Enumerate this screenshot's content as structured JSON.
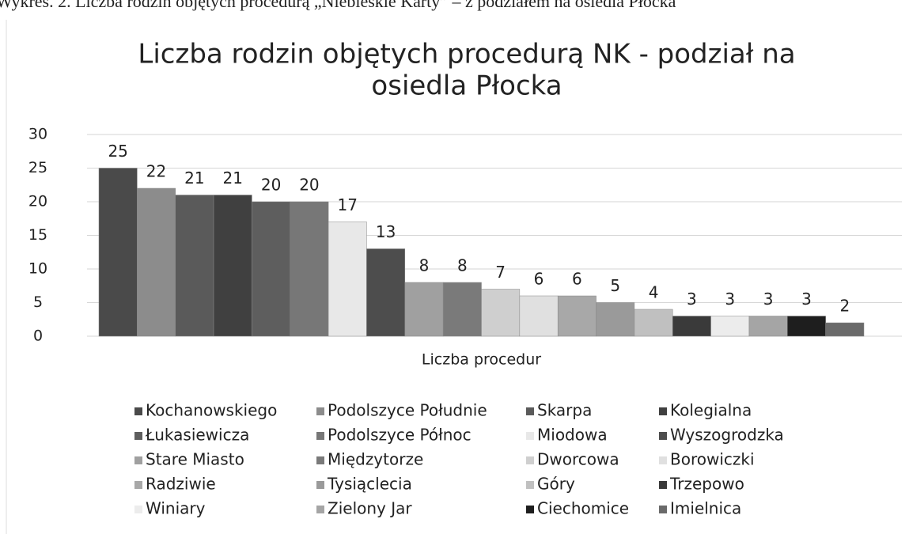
{
  "caption": "Wykres. 2. Liczba rodzin objętych procedurą „Niebieskie Karty” – z podziałem na osiedla Płocka",
  "chart_data": {
    "type": "bar",
    "title": [
      "Liczba rodzin objętych procedurą NK - podział na",
      "osiedla Płocka"
    ],
    "categories": [
      "Liczba procedur"
    ],
    "ylim": [
      0,
      30
    ],
    "yticks": [
      0,
      5,
      10,
      15,
      20,
      25,
      30
    ],
    "grid": true,
    "legend": "bottom",
    "series": [
      {
        "name": "Kochanowskiego",
        "color": "#4a4a4a",
        "values": [
          25
        ]
      },
      {
        "name": "Podolszyce Południe",
        "color": "#8c8c8c",
        "values": [
          22
        ]
      },
      {
        "name": "Skarpa",
        "color": "#5a5a5a",
        "values": [
          21
        ]
      },
      {
        "name": "Kolegialna",
        "color": "#404040",
        "values": [
          21
        ]
      },
      {
        "name": "Łukasiewicza",
        "color": "#5e5e5e",
        "values": [
          20
        ]
      },
      {
        "name": "Podolszyce Północ",
        "color": "#777777",
        "values": [
          20
        ]
      },
      {
        "name": "Miodowa",
        "color": "#e8e8e8",
        "values": [
          17
        ]
      },
      {
        "name": "Wyszogrodzka",
        "color": "#4d4d4d",
        "values": [
          13
        ]
      },
      {
        "name": "Stare Miasto",
        "color": "#a0a0a0",
        "values": [
          8
        ]
      },
      {
        "name": "Międzytorze",
        "color": "#7a7a7a",
        "values": [
          8
        ]
      },
      {
        "name": "Dworcowa",
        "color": "#cfcfcf",
        "values": [
          7
        ]
      },
      {
        "name": "Borowiczki",
        "color": "#e0e0e0",
        "values": [
          6
        ]
      },
      {
        "name": "Radziwie",
        "color": "#a8a8a8",
        "values": [
          6
        ]
      },
      {
        "name": "Tysiąclecia",
        "color": "#9a9a9a",
        "values": [
          5
        ]
      },
      {
        "name": "Góry",
        "color": "#c0c0c0",
        "values": [
          4
        ]
      },
      {
        "name": "Trzepowo",
        "color": "#3a3a3a",
        "values": [
          3
        ]
      },
      {
        "name": "Winiary",
        "color": "#ececec",
        "values": [
          3
        ]
      },
      {
        "name": "Zielony Jar",
        "color": "#a5a5a5",
        "values": [
          3
        ]
      },
      {
        "name": "Ciechomice",
        "color": "#1e1e1e",
        "values": [
          3
        ]
      },
      {
        "name": "Imielnica",
        "color": "#6a6a6a",
        "values": [
          2
        ]
      }
    ]
  }
}
